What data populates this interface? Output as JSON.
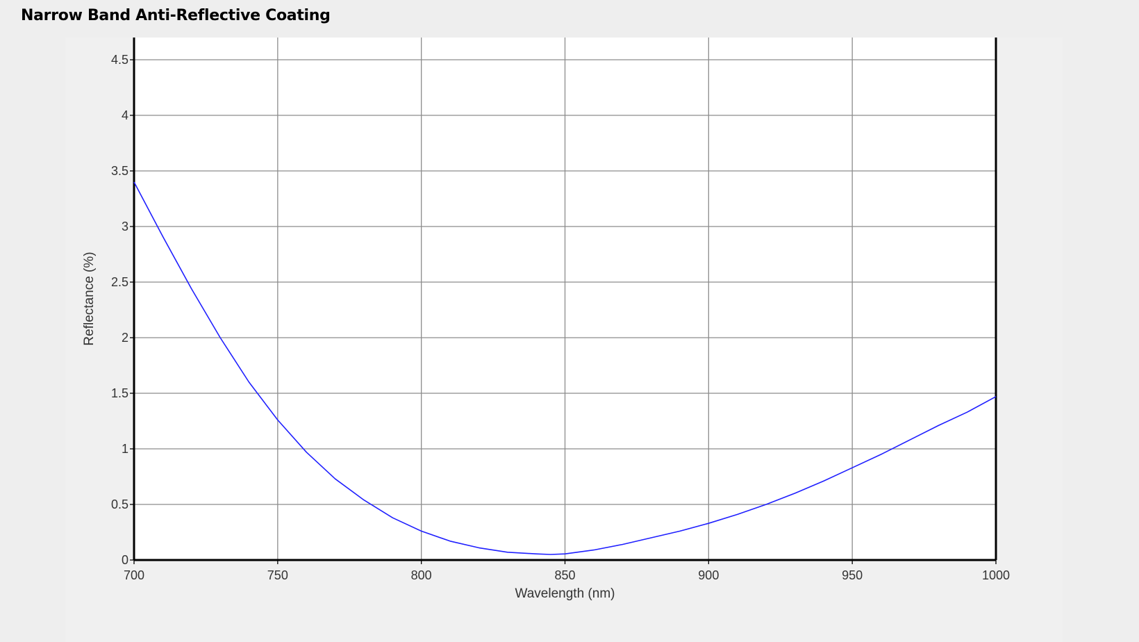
{
  "page": {
    "title": "Narrow Band Anti-Reflective Coating"
  },
  "colors": {
    "series": "#1f1fff",
    "grid": "#8c8c8c",
    "axis": "#000000",
    "plot_bg": "#ffffff",
    "panel_bg": "#f0f0f0"
  },
  "chart_data": {
    "type": "line",
    "title": "",
    "xlabel": "Wavelength (nm)",
    "ylabel": "Reflectance (%)",
    "xlim": [
      700,
      1000
    ],
    "ylim": [
      0,
      4.7
    ],
    "x_ticks": [
      700,
      750,
      800,
      850,
      900,
      950,
      1000
    ],
    "x_tick_labels": [
      "700",
      "750",
      "800",
      "850",
      "900",
      "950",
      "1000"
    ],
    "y_ticks": [
      0,
      0.5,
      1,
      1.5,
      2,
      2.5,
      3,
      3.5,
      4,
      4.5
    ],
    "y_tick_labels": [
      "0",
      "0.5",
      "1",
      "1.5",
      "2",
      "2.5",
      "3",
      "3.5",
      "4",
      "4.5"
    ],
    "grid": true,
    "series": [
      {
        "x": [
          700,
          710,
          720,
          730,
          740,
          750,
          760,
          770,
          780,
          790,
          800,
          810,
          820,
          830,
          840,
          845,
          850,
          860,
          870,
          880,
          890,
          900,
          910,
          920,
          930,
          940,
          950,
          960,
          970,
          980,
          990,
          1000
        ],
        "y": [
          3.4,
          2.91,
          2.44,
          2.0,
          1.6,
          1.26,
          0.97,
          0.73,
          0.54,
          0.38,
          0.26,
          0.17,
          0.11,
          0.07,
          0.055,
          0.05,
          0.055,
          0.09,
          0.14,
          0.2,
          0.26,
          0.33,
          0.41,
          0.5,
          0.6,
          0.71,
          0.83,
          0.95,
          1.08,
          1.21,
          1.33,
          1.47
        ]
      }
    ]
  }
}
